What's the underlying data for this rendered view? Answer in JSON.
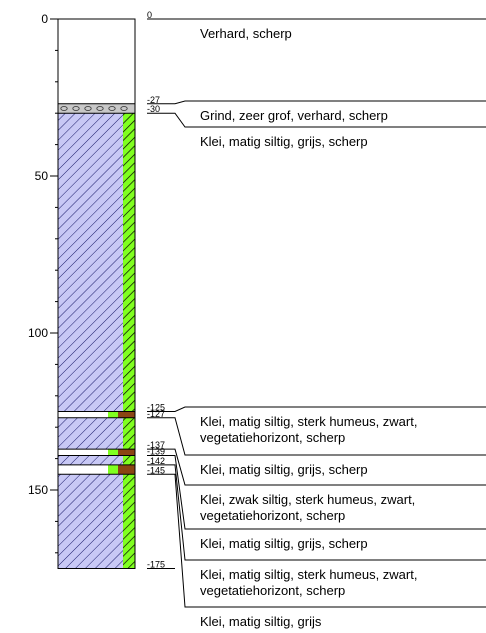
{
  "axis": {
    "ticks": [
      {
        "value": 0,
        "label": "0"
      },
      {
        "value": 50,
        "label": "50"
      },
      {
        "value": 100,
        "label": "100"
      },
      {
        "value": 150,
        "label": "150"
      }
    ],
    "max_depth": 175,
    "minor_step": 10
  },
  "colors": {
    "klei": "#c8c8f5",
    "hatch": "#1a1a6a",
    "grind": "#c8c8c8",
    "humus": "#80ff20",
    "brown": "#8b4513",
    "line": "#000000"
  },
  "boundaries": [
    {
      "depth": 0,
      "label": "0"
    },
    {
      "depth": 27,
      "label": "-27"
    },
    {
      "depth": 30,
      "label": "-30"
    },
    {
      "depth": 125,
      "label": "-125"
    },
    {
      "depth": 127,
      "label": "-127"
    },
    {
      "depth": 137,
      "label": "-137"
    },
    {
      "depth": 139,
      "label": "-139"
    },
    {
      "depth": 142,
      "label": "-142"
    },
    {
      "depth": 145,
      "label": "-145"
    },
    {
      "depth": 175,
      "label": "-175"
    }
  ],
  "layers": [
    {
      "top": 0,
      "bottom": 27,
      "material": "verhard",
      "description": [
        "Verhard, scherp"
      ]
    },
    {
      "top": 27,
      "bottom": 30,
      "material": "grind",
      "description": [
        "Grind, zeer grof, verhard, scherp"
      ]
    },
    {
      "top": 30,
      "bottom": 125,
      "material": "klei",
      "description": [
        "Klei, matig siltig, grijs, scherp"
      ]
    },
    {
      "top": 125,
      "bottom": 127,
      "material": "klei-humeus",
      "description": [
        "Klei, matig siltig, sterk humeus, zwart,",
        "vegetatiehorizont, scherp"
      ]
    },
    {
      "top": 127,
      "bottom": 137,
      "material": "klei",
      "description": [
        "Klei, matig siltig, grijs, scherp"
      ]
    },
    {
      "top": 137,
      "bottom": 139,
      "material": "klei-humeus",
      "description": [
        "Klei, zwak siltig, sterk humeus, zwart,",
        "vegetatiehorizont, scherp"
      ]
    },
    {
      "top": 139,
      "bottom": 142,
      "material": "klei",
      "description": [
        "Klei, matig siltig, grijs, scherp"
      ]
    },
    {
      "top": 142,
      "bottom": 145,
      "material": "klei-humeus",
      "description": [
        "Klei, matig siltig, sterk humeus, zwart,",
        "vegetatiehorizont, scherp"
      ]
    },
    {
      "top": 145,
      "bottom": 175,
      "material": "klei",
      "description": [
        "Klei, matig siltig, grijs"
      ]
    }
  ]
}
